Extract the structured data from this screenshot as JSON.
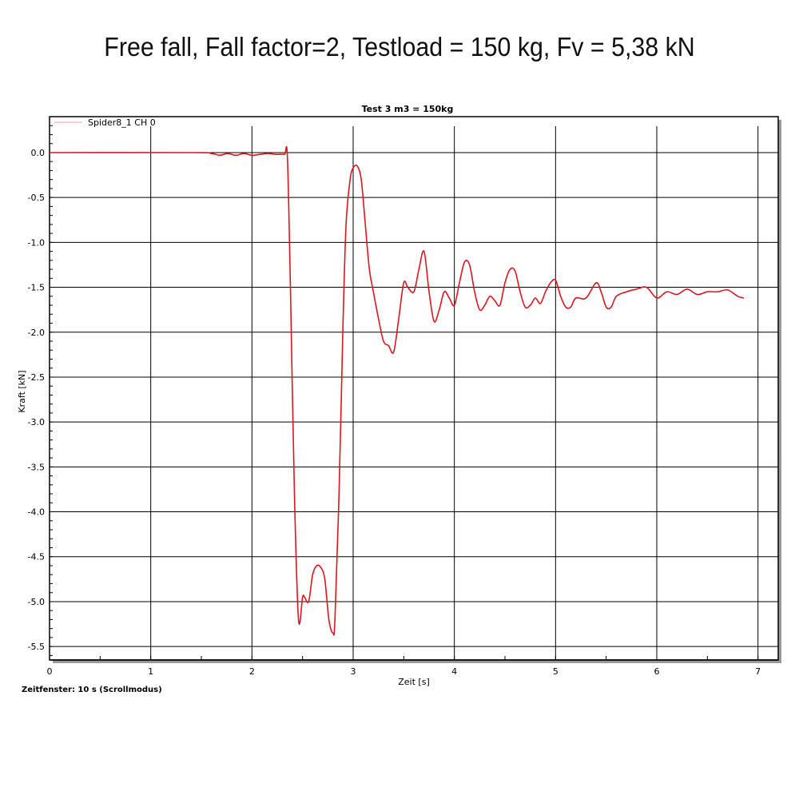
{
  "headline": "Free fall, Fall factor=2,  Testload = 150 kg, Fv = 5,38 kN",
  "footer_note": "Zeitfenster: 10 s (Scrollmodus)",
  "chart_data": {
    "type": "line",
    "title": "Test 3 m3 = 150kg",
    "xlabel": "Zeit [s]",
    "ylabel": "Kraft [kN]",
    "xlim": [
      0,
      7.2
    ],
    "ylim": [
      -5.65,
      0.4
    ],
    "xticks": [
      0,
      1,
      2,
      3,
      4,
      5,
      6,
      7
    ],
    "yticks": [
      0.0,
      -0.5,
      -1.0,
      -1.5,
      -2.0,
      -2.5,
      -3.0,
      -3.5,
      -4.0,
      -4.5,
      -5.0,
      -5.5
    ],
    "ytick_labels": [
      "0.0",
      "-0.5",
      "-1.0",
      "-1.5",
      "-2.0",
      "-2.5",
      "-3.0",
      "-3.5",
      "-4.0",
      "-4.5",
      "-5.0",
      "-5.5"
    ],
    "grid": true,
    "legend_position": "top-left",
    "line_color": "#e0141e",
    "series": [
      {
        "name": "Spider8_1 CH 0",
        "x": [
          0,
          1.4,
          1.6,
          1.68,
          1.76,
          1.84,
          1.92,
          2.0,
          2.08,
          2.16,
          2.24,
          2.32,
          2.35,
          2.38,
          2.42,
          2.46,
          2.5,
          2.52,
          2.56,
          2.6,
          2.64,
          2.68,
          2.72,
          2.76,
          2.8,
          2.82,
          2.86,
          2.9,
          2.93,
          2.97,
          3.0,
          3.04,
          3.08,
          3.12,
          3.16,
          3.2,
          3.25,
          3.3,
          3.35,
          3.4,
          3.45,
          3.5,
          3.54,
          3.6,
          3.65,
          3.7,
          3.75,
          3.8,
          3.85,
          3.9,
          3.95,
          4.0,
          4.05,
          4.1,
          4.15,
          4.2,
          4.25,
          4.3,
          4.35,
          4.4,
          4.45,
          4.5,
          4.55,
          4.6,
          4.65,
          4.7,
          4.75,
          4.8,
          4.85,
          4.9,
          4.95,
          5.0,
          5.05,
          5.1,
          5.15,
          5.2,
          5.3,
          5.4,
          5.45,
          5.5,
          5.55,
          5.6,
          5.7,
          5.8,
          5.9,
          6.0,
          6.1,
          6.2,
          6.3,
          6.4,
          6.5,
          6.6,
          6.7,
          6.8,
          6.86
        ],
        "values": [
          0.0,
          0.0,
          -0.01,
          -0.03,
          -0.01,
          -0.03,
          -0.01,
          -0.03,
          -0.02,
          -0.01,
          -0.02,
          -0.02,
          -0.05,
          -1.5,
          -3.8,
          -5.2,
          -4.95,
          -4.95,
          -5.0,
          -4.7,
          -4.6,
          -4.62,
          -4.75,
          -5.2,
          -5.35,
          -5.2,
          -3.8,
          -1.9,
          -0.8,
          -0.3,
          -0.17,
          -0.15,
          -0.3,
          -0.8,
          -1.3,
          -1.55,
          -1.85,
          -2.1,
          -2.15,
          -2.22,
          -1.85,
          -1.45,
          -1.5,
          -1.55,
          -1.3,
          -1.1,
          -1.55,
          -1.88,
          -1.75,
          -1.55,
          -1.62,
          -1.7,
          -1.45,
          -1.22,
          -1.25,
          -1.55,
          -1.75,
          -1.7,
          -1.6,
          -1.65,
          -1.7,
          -1.45,
          -1.3,
          -1.32,
          -1.55,
          -1.72,
          -1.7,
          -1.62,
          -1.68,
          -1.55,
          -1.45,
          -1.42,
          -1.6,
          -1.72,
          -1.72,
          -1.62,
          -1.62,
          -1.45,
          -1.55,
          -1.72,
          -1.72,
          -1.6,
          -1.55,
          -1.52,
          -1.5,
          -1.62,
          -1.55,
          -1.58,
          -1.52,
          -1.58,
          -1.55,
          -1.55,
          -1.53,
          -1.6,
          -1.62
        ]
      }
    ]
  }
}
